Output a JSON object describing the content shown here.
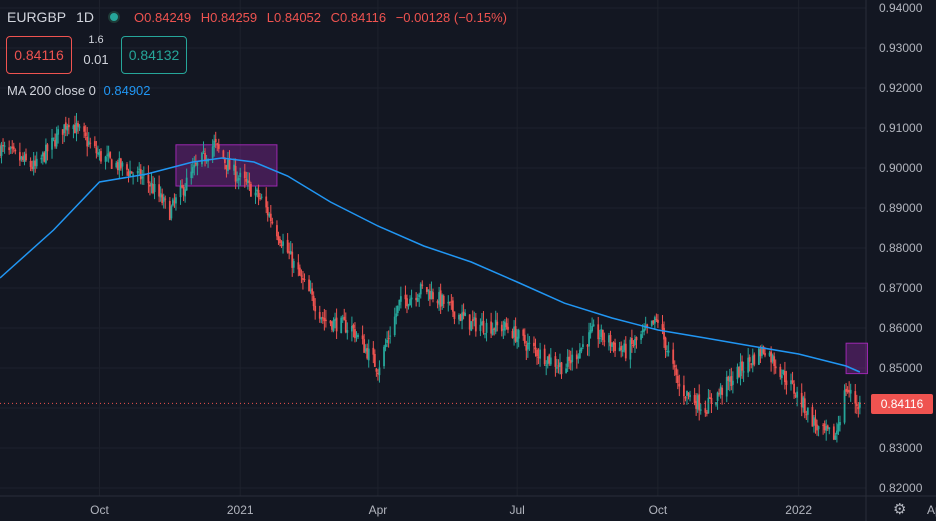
{
  "header": {
    "symbol": "EURGBP",
    "timeframe": "1D",
    "open": "O0.84249",
    "high": "H0.84259",
    "low": "L0.84052",
    "close": "C0.84116",
    "change": "−0.00128 (−0.15%)"
  },
  "trade": {
    "sell_price": "0.84116",
    "spread": "1.6",
    "lot": "0.01",
    "buy_price": "0.84132"
  },
  "indicator": {
    "label": "MA 200 close 0",
    "value": "0.84902"
  },
  "last_price_tag": "0.84116",
  "colors": {
    "background": "#131722",
    "up": "#26a69a",
    "down": "#ef5350",
    "ma": "#2196f3",
    "zone": "#9c27b0"
  },
  "chart_data": {
    "type": "candlestick",
    "ylim": [
      0.82,
      0.94
    ],
    "y_ticks": [
      "0.94000",
      "0.93000",
      "0.92000",
      "0.91000",
      "0.90000",
      "0.89000",
      "0.88000",
      "0.87000",
      "0.86000",
      "0.85000",
      "0.84000",
      "0.83000",
      "0.82000"
    ],
    "x_ticks": [
      "Oct",
      "2021",
      "Apr",
      "Jul",
      "Oct",
      "2022",
      "Apr"
    ],
    "close_series": {
      "x": [
        "2020-07-28",
        "2020-08-20",
        "2020-09-11",
        "2020-10-01",
        "2020-11-01",
        "2020-11-16",
        "2020-12-01",
        "2020-12-15",
        "2020-12-25",
        "2021-01-15",
        "2021-02-10",
        "2021-02-25",
        "2021-03-15",
        "2021-04-01",
        "2021-04-15",
        "2021-05-01",
        "2021-06-01",
        "2021-06-25",
        "2021-07-10",
        "2021-08-01",
        "2021-08-20",
        "2021-09-10",
        "2021-10-01",
        "2021-10-15",
        "2021-11-01",
        "2021-11-25",
        "2021-12-10",
        "2021-12-28",
        "2022-01-15",
        "2022-01-25",
        "2022-02-01",
        "2022-02-08"
      ],
      "values": [
        0.905,
        0.9,
        0.912,
        0.903,
        0.897,
        0.889,
        0.899,
        0.906,
        0.9,
        0.892,
        0.872,
        0.862,
        0.86,
        0.85,
        0.866,
        0.87,
        0.861,
        0.86,
        0.855,
        0.85,
        0.859,
        0.854,
        0.862,
        0.845,
        0.84,
        0.85,
        0.855,
        0.845,
        0.834,
        0.833,
        0.845,
        0.841
      ]
    },
    "ma_series": {
      "name": "MA 200 close 0",
      "x": [
        "2020-07-28",
        "2020-09-01",
        "2020-10-01",
        "2020-11-01",
        "2020-12-01",
        "2020-12-20",
        "2021-01-10",
        "2021-02-01",
        "2021-03-01",
        "2021-04-01",
        "2021-05-01",
        "2021-06-01",
        "2021-07-01",
        "2021-08-01",
        "2021-09-01",
        "2021-10-01",
        "2021-11-01",
        "2021-12-01",
        "2022-01-01",
        "2022-02-01",
        "2022-02-10"
      ],
      "values": [
        0.8725,
        0.8845,
        0.8965,
        0.8985,
        0.9015,
        0.9025,
        0.9015,
        0.898,
        0.8915,
        0.8855,
        0.8805,
        0.8765,
        0.8715,
        0.8662,
        0.8625,
        0.8595,
        0.8575,
        0.8555,
        0.8535,
        0.8505,
        0.849
      ]
    },
    "zones": [
      {
        "x": [
          "2020-11-20",
          "2021-01-25"
        ],
        "y": [
          0.8955,
          0.9058
        ]
      },
      {
        "x": [
          "2022-02-01",
          "2022-02-15"
        ],
        "y": [
          0.8486,
          0.8562
        ]
      }
    ],
    "last_price": 0.84116
  }
}
